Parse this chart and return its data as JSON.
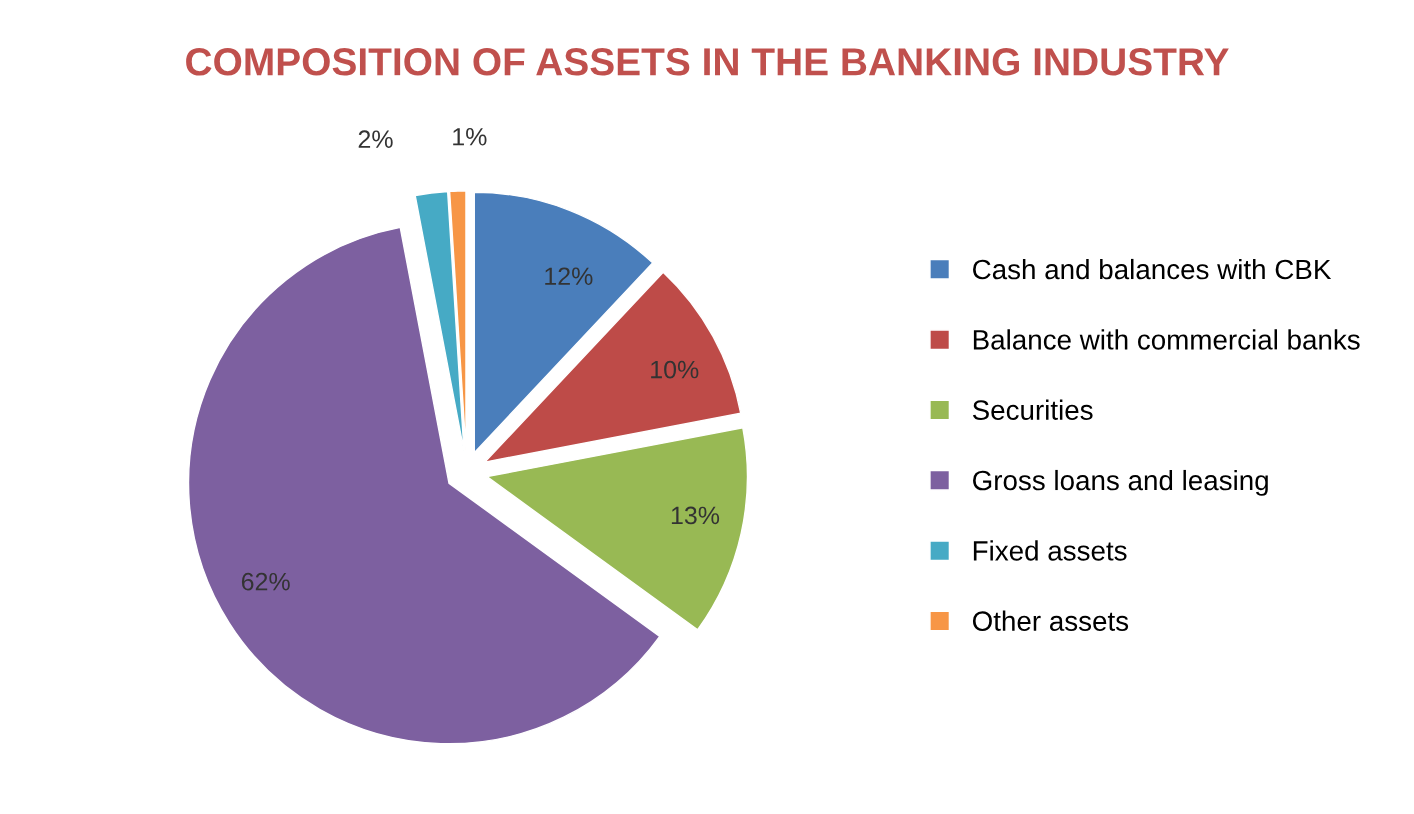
{
  "chart_data": {
    "type": "pie",
    "title": "COMPOSITION OF ASSETS IN THE BANKING INDUSTRY",
    "categories": [
      "Cash and balances with CBK",
      "Balance with commercial banks",
      "Securities",
      "Gross loans and leasing",
      "Fixed assets",
      "Other assets"
    ],
    "values": [
      12,
      10,
      13,
      62,
      2,
      1
    ],
    "colors": [
      "#4a7ebb",
      "#be4b48",
      "#98b954",
      "#7d60a0",
      "#46aac5",
      "#f79646"
    ],
    "value_labels": [
      "12%",
      "10%",
      "13%",
      "62%",
      "2%",
      "1%"
    ],
    "legend": "right"
  }
}
